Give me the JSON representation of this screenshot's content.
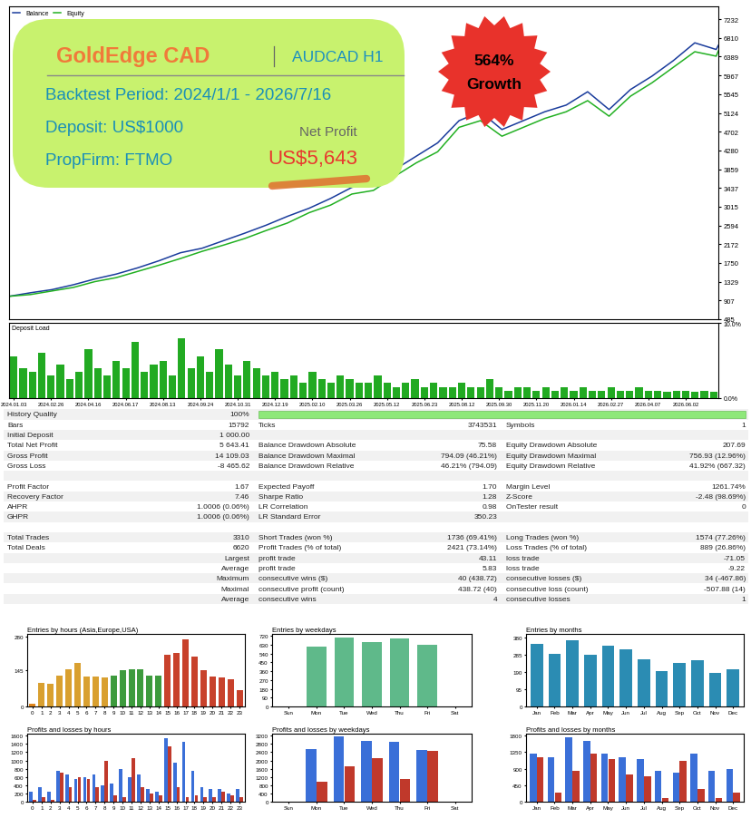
{
  "banner": {
    "title": "GoldEdge CAD",
    "symbol": "AUDCAD H1",
    "period": "Backtest Period: 2024/1/1 - 2026/7/16",
    "deposit": "Deposit: US$1000",
    "prop_firm": "PropFirm: FTMO",
    "net_profit_label": "Net Profit",
    "net_profit": "US$5,643",
    "badge": [
      "564%",
      "Growth"
    ]
  },
  "chart_data": [
    {
      "type": "line",
      "legend": "upper left",
      "grid": false,
      "tick_labels": "y",
      "x": [
        0,
        100,
        200,
        300,
        400,
        500,
        600,
        700,
        800,
        900,
        1000,
        1100,
        1200,
        1300,
        1400,
        1500,
        1600,
        1700,
        1800,
        1900,
        2000,
        2100,
        2200,
        2300,
        2400,
        2500,
        2600,
        2700,
        2800,
        2900,
        3000,
        3100,
        3200,
        3300,
        3310
      ],
      "xlim": [
        0,
        3310
      ],
      "ylim": [
        485,
        7520
      ],
      "yticks": [
        485,
        907,
        1329,
        1750,
        2172,
        2594,
        3015,
        3437,
        3859,
        4280,
        4702,
        5124,
        5545,
        5967,
        6389,
        6810,
        7232
      ],
      "series": [
        {
          "name": "Balance",
          "color": "#1a3c9c",
          "values": [
            1000,
            1080,
            1150,
            1260,
            1390,
            1500,
            1640,
            1800,
            1980,
            2080,
            2250,
            2420,
            2600,
            2800,
            2980,
            3200,
            3450,
            3560,
            3850,
            4150,
            4450,
            4950,
            5150,
            4750,
            4950,
            5150,
            5300,
            5600,
            5200,
            5650,
            5950,
            6300,
            6700,
            6550,
            6643
          ]
        },
        {
          "name": "Equity",
          "color": "#22b022",
          "values": [
            1000,
            1040,
            1120,
            1200,
            1330,
            1420,
            1560,
            1700,
            1850,
            2010,
            2150,
            2300,
            2480,
            2650,
            2880,
            3050,
            3300,
            3380,
            3700,
            4000,
            4250,
            4800,
            4950,
            4600,
            4800,
            5000,
            5150,
            5400,
            5050,
            5500,
            5800,
            6150,
            6500,
            6400,
            6520
          ]
        }
      ]
    },
    {
      "type": "bar",
      "title": "Deposit Load",
      "grid": false,
      "color": "#22aa22",
      "categories": [
        "2024.01.03",
        null,
        null,
        null,
        "2024.02.26",
        null,
        null,
        null,
        "2024.04.16",
        null,
        null,
        null,
        "2024.06.17",
        null,
        null,
        null,
        "2024.08.13",
        null,
        null,
        null,
        "2024.09.24",
        null,
        null,
        null,
        "2024.10.31",
        null,
        null,
        null,
        "2024.12.19",
        null,
        null,
        null,
        "2025.02.10",
        null,
        null,
        null,
        "2025.03.26",
        null,
        null,
        null,
        "2025.05.12",
        null,
        null,
        null,
        "2025.06.23",
        null,
        null,
        null,
        "2025.08.12",
        null,
        null,
        null,
        "2025.09.30",
        null,
        null,
        null,
        "2025.11.20",
        null,
        null,
        null,
        "2026.01.14",
        null,
        null,
        null,
        "2026.02.27",
        null,
        null,
        null,
        "2026.04.07",
        null,
        null,
        null,
        "2026.06.02",
        null,
        null,
        null
      ],
      "values": [
        5.5,
        4.0,
        3.5,
        6.0,
        3.0,
        4.5,
        2.5,
        3.5,
        6.5,
        4.0,
        3.0,
        5.0,
        4.0,
        7.5,
        3.5,
        4.5,
        5.0,
        3.0,
        8.0,
        4.0,
        5.5,
        3.5,
        6.5,
        4.5,
        3.0,
        5.0,
        4.0,
        3.0,
        3.5,
        2.5,
        3.0,
        2.0,
        3.5,
        2.5,
        2.0,
        3.0,
        2.5,
        2.0,
        2.0,
        3.0,
        2.0,
        1.5,
        2.0,
        2.5,
        1.5,
        2.0,
        1.5,
        1.5,
        2.0,
        1.5,
        1.5,
        2.5,
        1.5,
        1.0,
        1.5,
        1.5,
        1.0,
        1.5,
        1.0,
        1.5,
        1.0,
        1.5,
        1.0,
        1.0,
        1.5,
        1.0,
        1.0,
        1.5,
        1.0,
        1.0,
        0.8,
        1.0,
        1.0,
        0.8,
        1.0,
        0.8
      ],
      "ylim": [
        0,
        10
      ],
      "yticks": [
        {
          "value": 0,
          "label": "0.0%"
        },
        {
          "value": 10,
          "label": "10.0%"
        }
      ]
    },
    {
      "type": "bar",
      "title": "Entries by hours (Asia,Europe,USA)",
      "categories": [
        "0",
        "1",
        "2",
        "3",
        "4",
        "5",
        "6",
        "7",
        "8",
        "9",
        "10",
        "11",
        "12",
        "13",
        "14",
        "15",
        "16",
        "17",
        "18",
        "19",
        "20",
        "21",
        "22",
        "23"
      ],
      "values": [
        10,
        95,
        90,
        125,
        150,
        175,
        120,
        120,
        115,
        125,
        145,
        150,
        150,
        125,
        125,
        205,
        215,
        270,
        200,
        145,
        120,
        115,
        110,
        65
      ],
      "colors": [
        "#e0861c",
        "#d9a030",
        "#d9a030",
        "#d9a030",
        "#d9a030",
        "#d9a030",
        "#d9a030",
        "#d9a030",
        "#d9a030",
        "#3d9b3d",
        "#3d9b3d",
        "#3d9b3d",
        "#3d9b3d",
        "#3d9b3d",
        "#3d9b3d",
        "#c8412b",
        "#c8412b",
        "#c8412b",
        "#c8412b",
        "#c8412b",
        "#c8412b",
        "#c8412b",
        "#c8412b",
        "#c8412b"
      ],
      "ylim": [
        0,
        290
      ],
      "yticks": [
        0,
        145,
        280
      ]
    },
    {
      "type": "bar",
      "title": "Entries by weekdays",
      "categories": [
        "Sun",
        "Mon",
        "Tue",
        "Wed",
        "Thu",
        "Fri",
        "Sat"
      ],
      "values": [
        0,
        610,
        700,
        660,
        690,
        630,
        0
      ],
      "color": "#5fb98a",
      "ylim": [
        0,
        740
      ],
      "yticks": [
        0,
        90,
        180,
        270,
        360,
        450,
        540,
        630,
        720
      ]
    },
    {
      "type": "bar",
      "title": "Entries by months",
      "categories": [
        "Jan",
        "Feb",
        "Mar",
        "Apr",
        "May",
        "Jun",
        "Jul",
        "Aug",
        "Sep",
        "Oct",
        "Nov",
        "Dec"
      ],
      "values": [
        345,
        290,
        365,
        285,
        335,
        315,
        260,
        195,
        240,
        255,
        185,
        205
      ],
      "color": "#2b8cb3",
      "ylim": [
        0,
        400
      ],
      "yticks": [
        0,
        95,
        190,
        285,
        380
      ]
    },
    {
      "type": "bar",
      "title": "Profits and losses by hours",
      "categories": [
        "0",
        "1",
        "2",
        "3",
        "4",
        "5",
        "6",
        "7",
        "8",
        "9",
        "10",
        "11",
        "12",
        "13",
        "14",
        "15",
        "16",
        "17",
        "18",
        "19",
        "20",
        "21",
        "22",
        "23"
      ],
      "series": [
        {
          "color": "#3a6fd8",
          "values": [
            250,
            350,
            250,
            750,
            650,
            550,
            600,
            650,
            400,
            450,
            800,
            600,
            650,
            300,
            250,
            1550,
            950,
            1450,
            750,
            350,
            300,
            300,
            200,
            300
          ]
        },
        {
          "color": "#c0392b",
          "values": [
            50,
            100,
            50,
            700,
            350,
            600,
            550,
            350,
            1000,
            150,
            100,
            1050,
            350,
            200,
            150,
            1350,
            350,
            100,
            150,
            100,
            100,
            250,
            150,
            100
          ]
        }
      ],
      "ylim": [
        0,
        1650
      ],
      "yticks": [
        0,
        200,
        400,
        600,
        800,
        1000,
        1200,
        1400,
        1600
      ]
    },
    {
      "type": "bar",
      "title": "Profits and losses by weekdays",
      "categories": [
        "Sun",
        "Mon",
        "Tue",
        "Wed",
        "Thu",
        "Fri",
        "Sat"
      ],
      "series": [
        {
          "color": "#3a6fd8",
          "values": [
            0,
            2550,
            3150,
            2950,
            2900,
            2500,
            0
          ]
        },
        {
          "color": "#c0392b",
          "values": [
            0,
            950,
            1700,
            2100,
            1100,
            2450,
            0
          ]
        }
      ],
      "ylim": [
        0,
        3300
      ],
      "yticks": [
        0,
        400,
        800,
        1200,
        1600,
        2000,
        2400,
        2800,
        3200
      ]
    },
    {
      "type": "bar",
      "title": "Profits and losses by months",
      "categories": [
        "Jan",
        "Feb",
        "Mar",
        "Apr",
        "May",
        "Jun",
        "Jul",
        "Aug",
        "Sep",
        "Oct",
        "Nov",
        "Dec"
      ],
      "series": [
        {
          "color": "#3a6fd8",
          "values": [
            1300,
            1200,
            1750,
            1650,
            1300,
            1200,
            1150,
            850,
            800,
            1300,
            850,
            900
          ]
        },
        {
          "color": "#c0392b",
          "values": [
            1200,
            250,
            850,
            1300,
            1150,
            750,
            700,
            100,
            1100,
            350,
            100,
            250
          ]
        }
      ],
      "ylim": [
        0,
        1850
      ],
      "yticks": [
        0,
        450,
        900,
        1350,
        1800
      ]
    }
  ],
  "report": {
    "rows": [
      [
        "History Quality",
        "100%",
        null,
        null,
        null,
        null
      ],
      [
        "Bars",
        "15792",
        "Ticks",
        "3743531",
        "Symbols",
        "1"
      ],
      [
        "Initial Deposit",
        "1 000.00",
        null,
        null,
        null,
        null
      ],
      [
        "Total Net Profit",
        "5 643.41",
        "Balance Drawdown Absolute",
        "75.58",
        "Equity Drawdown Absolute",
        "207.69"
      ],
      [
        "Gross Profit",
        "14 109.03",
        "Balance Drawdown Maximal",
        "794.09 (46.21%)",
        "Equity Drawdown Maximal",
        "756.93 (12.96%)"
      ],
      [
        "Gross Loss",
        "-8 465.62",
        "Balance Drawdown Relative",
        "46.21% (794.09)",
        "Equity Drawdown Relative",
        "41.92% (667.32)"
      ],
      [
        null,
        null,
        null,
        null,
        null,
        null
      ],
      [
        "Profit Factor",
        "1.67",
        "Expected Payoff",
        "1.70",
        "Margin Level",
        "1261.74%"
      ],
      [
        "Recovery Factor",
        "7.46",
        "Sharpe Ratio",
        "1.28",
        "Z-Score",
        "-2.48 (98.69%)"
      ],
      [
        "AHPR",
        "1.0006 (0.06%)",
        "LR Correlation",
        "0.98",
        "OnTester result",
        "0"
      ],
      [
        "GHPR",
        "1.0006 (0.06%)",
        "LR Standard Error",
        "350.23",
        null,
        null
      ],
      [
        null,
        null,
        null,
        null,
        null,
        null
      ],
      [
        "Total Trades",
        "3310",
        "Short Trades (won %)",
        "1736 (69.41%)",
        "Long Trades (won %)",
        "1574 (77.26%)"
      ],
      [
        "Total Deals",
        "6620",
        "Profit Trades (% of total)",
        "2421 (73.14%)",
        "Loss Trades (% of total)",
        "889 (26.86%)"
      ],
      [
        "Largest",
        null,
        "profit trade",
        "43.11",
        "loss trade",
        "-71.05"
      ],
      [
        "Average",
        null,
        "profit trade",
        "5.83",
        "loss trade",
        "-9.22"
      ],
      [
        "Maximum",
        null,
        "consecutive wins ($)",
        "40 (438.72)",
        "consecutive losses ($)",
        "34 (-467.86)"
      ],
      [
        "Maximal",
        null,
        "consecutive profit (count)",
        "438.72 (40)",
        "consecutive loss (count)",
        "-507.88 (14)"
      ],
      [
        "Average",
        null,
        "consecutive wins",
        "4",
        "consecutive losses",
        "1"
      ]
    ]
  }
}
